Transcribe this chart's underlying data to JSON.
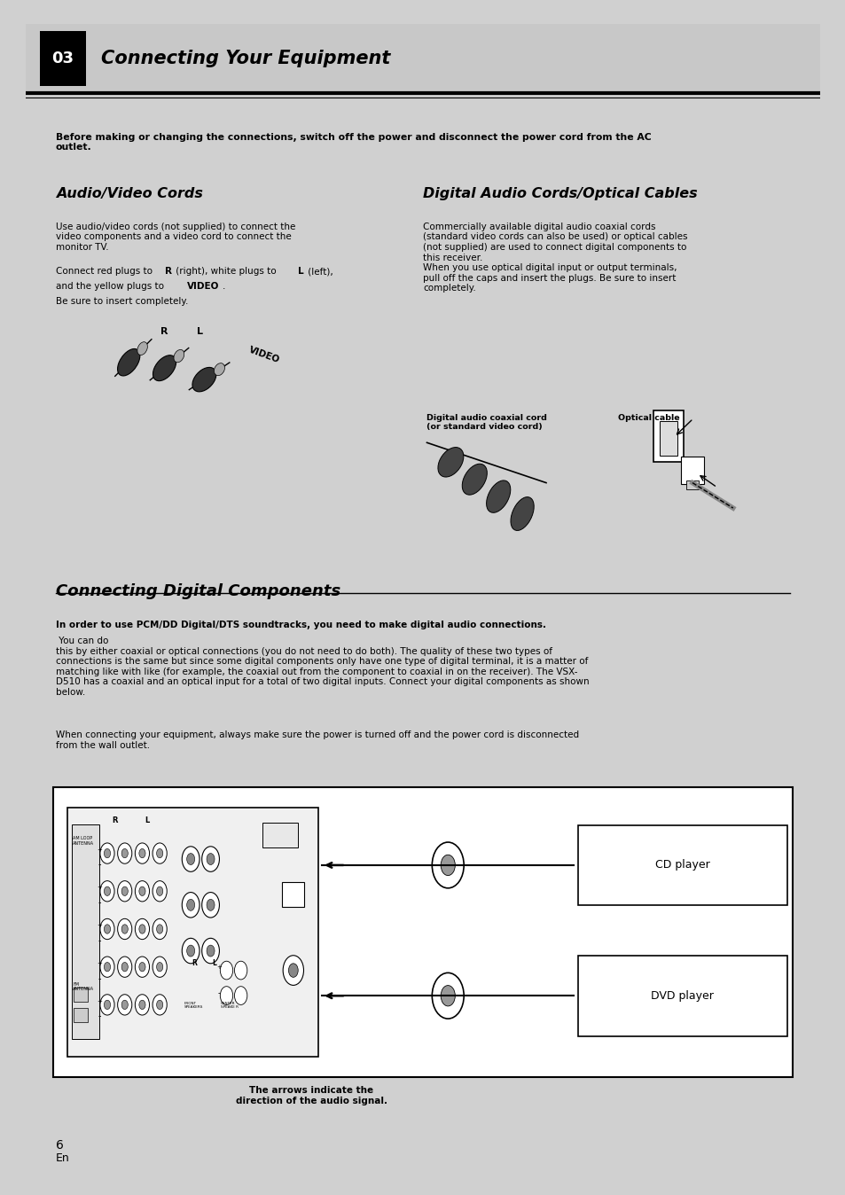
{
  "page_bg": "#d0d0d0",
  "content_bg": "#ffffff",
  "header_bg": "#c8c8c8",
  "black": "#000000",
  "page_number": "6",
  "page_lang": "En",
  "chapter_num": "03",
  "chapter_title": "Connecting Your Equipment",
  "warning_text": "Before making or changing the connections, switch off the power and disconnect the power cord from the AC\noutlet.",
  "section1_title": "Audio/Video Cords",
  "section2_title": "Digital Audio Cords/Optical Cables",
  "img2_label1": "Digital audio coaxial cord\n(or standard video cord)",
  "img2_label2": "Optical cable",
  "section3_title": "Connecting Digital Components",
  "diagram_label1": "CD player",
  "diagram_label2": "DVD player",
  "arrows_label": "The arrows indicate the\ndirection of the audio signal."
}
